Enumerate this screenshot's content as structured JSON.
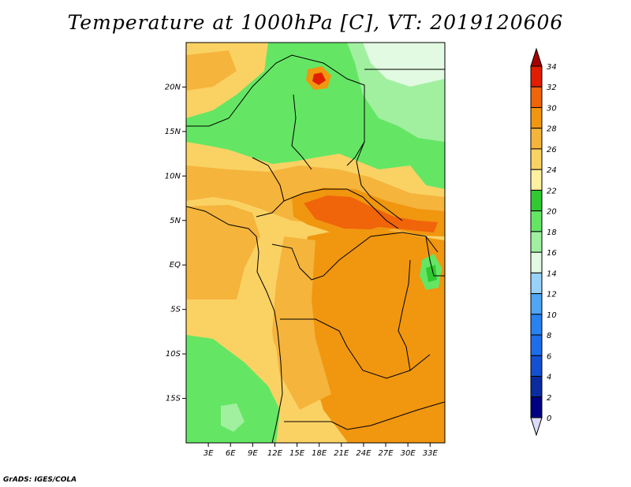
{
  "title": "Temperature at 1000hPa [C], VT: 2019120606",
  "credit": "GrADS: IGES/COLA",
  "map": {
    "lon_range": [
      0,
      35
    ],
    "lat_range": [
      -20,
      25
    ],
    "lat_labels": [
      {
        "lat": 20,
        "text": "20N"
      },
      {
        "lat": 15,
        "text": "15N"
      },
      {
        "lat": 10,
        "text": "10N"
      },
      {
        "lat": 5,
        "text": "5N"
      },
      {
        "lat": 0,
        "text": "EQ"
      },
      {
        "lat": -5,
        "text": "5S"
      },
      {
        "lat": -10,
        "text": "10S"
      },
      {
        "lat": -15,
        "text": "15S"
      }
    ],
    "lon_labels": [
      {
        "lon": 3,
        "text": "3E"
      },
      {
        "lon": 6,
        "text": "6E"
      },
      {
        "lon": 9,
        "text": "9E"
      },
      {
        "lon": 12,
        "text": "12E"
      },
      {
        "lon": 15,
        "text": "15E"
      },
      {
        "lon": 18,
        "text": "18E"
      },
      {
        "lon": 21,
        "text": "21E"
      },
      {
        "lon": 24,
        "text": "24E"
      },
      {
        "lon": 27,
        "text": "27E"
      },
      {
        "lon": 30,
        "text": "30E"
      },
      {
        "lon": 33,
        "text": "33E"
      }
    ]
  },
  "colorbar": {
    "labels": [
      "34",
      "32",
      "30",
      "28",
      "26",
      "24",
      "22",
      "20",
      "18",
      "16",
      "14",
      "12",
      "10",
      "8",
      "6",
      "4",
      "2",
      "0"
    ],
    "colors": [
      "#a50000",
      "#e11e00",
      "#f0640a",
      "#f0960f",
      "#f5b43c",
      "#fad264",
      "#fff0a0",
      "#32c832",
      "#64e664",
      "#a0f0a0",
      "#e1fae1",
      "#96d2fa",
      "#50a5f5",
      "#2882f0",
      "#1e6eeb",
      "#1450d2",
      "#0a2c9e",
      "#000082",
      "#dcdcff"
    ]
  }
}
